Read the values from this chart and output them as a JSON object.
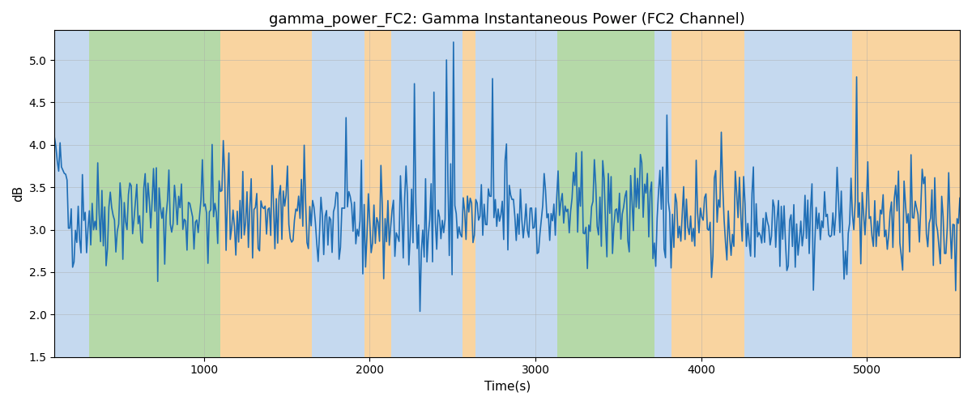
{
  "title": "gamma_power_FC2: Gamma Instantaneous Power (FC2 Channel)",
  "xlabel": "Time(s)",
  "ylabel": "dB",
  "xlim": [
    100,
    5560
  ],
  "ylim": [
    1.5,
    5.35
  ],
  "line_color": "#1f6eb5",
  "line_width": 1.2,
  "bg_regions": [
    {
      "xmin": 100,
      "xmax": 310,
      "color": "#c5d9ef"
    },
    {
      "xmin": 310,
      "xmax": 1100,
      "color": "#b5d9a8"
    },
    {
      "xmin": 1100,
      "xmax": 1650,
      "color": "#f9d4a0"
    },
    {
      "xmin": 1650,
      "xmax": 1970,
      "color": "#c5d9ef"
    },
    {
      "xmin": 1970,
      "xmax": 2130,
      "color": "#f9d4a0"
    },
    {
      "xmin": 2130,
      "xmax": 2560,
      "color": "#c5d9ef"
    },
    {
      "xmin": 2560,
      "xmax": 2640,
      "color": "#f9d4a0"
    },
    {
      "xmin": 2640,
      "xmax": 3060,
      "color": "#c5d9ef"
    },
    {
      "xmin": 3060,
      "xmax": 3130,
      "color": "#c5d9ef"
    },
    {
      "xmin": 3130,
      "xmax": 3720,
      "color": "#b5d9a8"
    },
    {
      "xmin": 3720,
      "xmax": 3820,
      "color": "#c5d9ef"
    },
    {
      "xmin": 3820,
      "xmax": 4260,
      "color": "#f9d4a0"
    },
    {
      "xmin": 4260,
      "xmax": 4910,
      "color": "#c5d9ef"
    },
    {
      "xmin": 4910,
      "xmax": 5560,
      "color": "#f9d4a0"
    }
  ],
  "seed": 42,
  "n_points": 650,
  "title_fontsize": 13,
  "xticks": [
    1000,
    2000,
    3000,
    4000,
    5000
  ],
  "yticks": [
    1.5,
    2.0,
    2.5,
    3.0,
    3.5,
    4.0,
    4.5,
    5.0
  ]
}
